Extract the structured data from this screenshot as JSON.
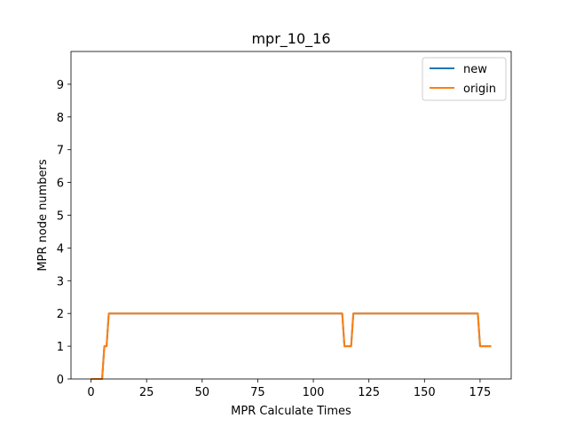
{
  "chart_data": {
    "type": "line",
    "title": "mpr_10_16",
    "xlabel": "MPR Calculate Times",
    "ylabel": "MPR node numbers",
    "xlim": [
      -9,
      189
    ],
    "ylim": [
      0,
      10
    ],
    "xticks": [
      0,
      25,
      50,
      75,
      100,
      125,
      150,
      175
    ],
    "yticks": [
      0,
      1,
      2,
      3,
      4,
      5,
      6,
      7,
      8,
      9
    ],
    "legend_position": "top-right",
    "grid": false,
    "series": [
      {
        "name": "new",
        "color": "#1f77b4",
        "x": [
          0,
          5,
          6,
          7,
          8,
          113,
          114,
          117,
          118,
          174,
          175,
          180
        ],
        "y": [
          0,
          0,
          1,
          1,
          2,
          2,
          1,
          1,
          2,
          2,
          1,
          1
        ]
      },
      {
        "name": "origin",
        "color": "#ff7f0e",
        "x": [
          0,
          5,
          6,
          7,
          8,
          113,
          114,
          117,
          118,
          174,
          175,
          180
        ],
        "y": [
          0,
          0,
          1,
          1,
          2,
          2,
          1,
          1,
          2,
          2,
          1,
          1
        ]
      }
    ]
  }
}
